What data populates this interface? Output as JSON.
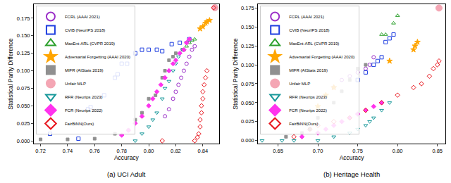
{
  "chart_data": [
    {
      "type": "scatter",
      "title": "(a) UCI Adult",
      "x_label": "Accuracy",
      "y_label": "Statistical Parity Difference",
      "xlim": [
        0.715,
        0.852
      ],
      "xticks": [
        0.72,
        0.74,
        0.76,
        0.78,
        {
          "value": 0.8,
          "label": "0.80"
        },
        0.82,
        0.84
      ],
      "ylim": [
        -0.004,
        0.195
      ],
      "yticks": [
        {
          "value": 0,
          "label": "0.000"
        },
        0.025,
        {
          "value": 0.05,
          "label": "0.050"
        },
        0.075,
        {
          "value": 0.1,
          "label": "0.100"
        },
        0.125,
        {
          "value": 0.15,
          "label": "0.150"
        },
        0.175
      ],
      "grid": false,
      "legend": "upper left",
      "series": [
        {
          "name": "FCRL (AAAI 2021)",
          "color": "#9b30c8",
          "marker": "circle-open",
          "x": [
            0.812,
            0.815,
            0.818,
            0.82,
            0.822,
            0.824,
            0.826,
            0.828,
            0.83,
            0.832,
            0.834
          ],
          "values": [
            0.035,
            0.045,
            0.06,
            0.07,
            0.08,
            0.09,
            0.1,
            0.11,
            0.12,
            0.13,
            0.135
          ]
        },
        {
          "name": "CVIB (NeurIPS 2018)",
          "color": "#1f3fe0",
          "marker": "square-open",
          "x": [
            0.727,
            0.748,
            0.755,
            0.757,
            0.767,
            0.775,
            0.777,
            0.78,
            0.784,
            0.79,
            0.795,
            0.8,
            0.806,
            0.81,
            0.817,
            0.823,
            0.83
          ],
          "values": [
            0.01,
            0.003,
            0.045,
            0.048,
            0.065,
            0.09,
            0.095,
            0.11,
            0.11,
            0.125,
            0.13,
            0.13,
            0.13,
            0.128,
            0.138,
            0.14,
            0.145
          ]
        },
        {
          "name": "MaxEnt-ARL (CVPR 2019)",
          "color": "#2ca02c",
          "marker": "triangle-up-open",
          "x": [
            0.826,
            0.828,
            0.83,
            0.832,
            0.834
          ],
          "values": [
            0.13,
            0.135,
            0.14,
            0.143,
            0.145
          ]
        },
        {
          "name": "Adversarial Forgetting (AAAI 2020)",
          "color": "#ffa500",
          "marker": "star",
          "x": [
            0.838,
            0.84,
            0.842,
            0.843,
            0.845
          ],
          "values": [
            0.16,
            0.163,
            0.168,
            0.17,
            0.172
          ]
        },
        {
          "name": "MIFR (AIStats 2019)",
          "color": "#909090",
          "marker": "square",
          "x": [
            0.72,
            0.74,
            0.76,
            0.775,
            0.785,
            0.79,
            0.795,
            0.8,
            0.805,
            0.81,
            0.812,
            0.815,
            0.818,
            0.82,
            0.825,
            0.828
          ],
          "values": [
            0.002,
            0.002,
            0.003,
            0.01,
            0.015,
            0.03,
            0.04,
            0.06,
            0.065,
            0.09,
            0.1,
            0.115,
            0.12,
            0.125,
            0.13,
            0.14
          ]
        },
        {
          "name": "Unfair MLP",
          "color": "#f4a6b4",
          "marker": "large-circle",
          "x": [
            0.849
          ],
          "values": [
            0.19
          ]
        },
        {
          "name": "RFR (Neurips 2023)",
          "color": "#17989a",
          "marker": "triangle-down-open",
          "x": [
            0.79,
            0.795,
            0.8,
            0.803,
            0.806,
            0.81,
            0.812,
            0.815,
            0.818,
            0.82,
            0.822,
            0.825,
            0.828
          ],
          "values": [
            0.0,
            0.01,
            0.02,
            0.03,
            0.04,
            0.06,
            0.075,
            0.085,
            0.1,
            0.11,
            0.12,
            0.13,
            0.14
          ]
        },
        {
          "name": "FCR (Neurips 2022)",
          "color": "#ff33ee",
          "marker": "diamond",
          "x": [
            0.78,
            0.785,
            0.79,
            0.795,
            0.8,
            0.803,
            0.806,
            0.809,
            0.812,
            0.815,
            0.818,
            0.82,
            0.823,
            0.826,
            0.828,
            0.83
          ],
          "values": [
            0.008,
            0.015,
            0.025,
            0.035,
            0.05,
            0.06,
            0.07,
            0.08,
            0.09,
            0.1,
            0.11,
            0.115,
            0.125,
            0.13,
            0.14,
            0.145
          ]
        },
        {
          "name": "FairBiNN(Ours)",
          "color": "#e8141c",
          "marker": "diamond-open",
          "x": [
            0.81,
            0.834,
            0.836,
            0.837,
            0.838,
            0.838,
            0.839,
            0.839,
            0.84,
            0.84,
            0.841,
            0.842,
            0.843,
            0.848
          ],
          "values": [
            0.0,
            0.0,
            0.005,
            0.01,
            0.02,
            0.03,
            0.04,
            0.05,
            0.06,
            0.07,
            0.08,
            0.09,
            0.1,
            0.19
          ]
        }
      ]
    },
    {
      "type": "scatter",
      "title": "(b) Heritage Health",
      "x_label": "Accuracy",
      "y_label": "Statistical Parity Difference",
      "xlim": [
        0.625,
        0.86
      ],
      "xticks": [
        0.65,
        {
          "value": 0.7,
          "label": "0.70"
        },
        0.75,
        {
          "value": 0.8,
          "label": "0.80"
        },
        0.85
      ],
      "ylim": [
        -0.004,
        0.18
      ],
      "yticks": [
        {
          "value": 0,
          "label": "0.000"
        },
        0.025,
        {
          "value": 0.05,
          "label": "0.050"
        },
        0.075,
        {
          "value": 0.1,
          "label": "0.100"
        },
        0.125,
        {
          "value": 0.15,
          "label": "0.150"
        },
        0.175
      ],
      "grid": false,
      "legend": "upper left",
      "series": [
        {
          "name": "FCRL (AAAI 2021)",
          "color": "#9b30c8",
          "marker": "circle-open",
          "x": [
            0.72,
            0.73,
            0.74,
            0.75,
            0.76,
            0.765,
            0.77
          ],
          "values": [
            0.07,
            0.08,
            0.085,
            0.09,
            0.095,
            0.1,
            0.11
          ]
        },
        {
          "name": "CVIB (NeurIPS 2018)",
          "color": "#1f3fe0",
          "marker": "square-open",
          "x": [
            0.75,
            0.76,
            0.77,
            0.775,
            0.78,
            0.785,
            0.79,
            0.795
          ],
          "values": [
            0.08,
            0.09,
            0.1,
            0.105,
            0.11,
            0.13,
            0.135,
            0.14
          ]
        },
        {
          "name": "MaxEnt-ARL (CVPR 2019)",
          "color": "#2ca02c",
          "marker": "triangle-up-open",
          "x": [
            0.78,
            0.785,
            0.795,
            0.8
          ],
          "values": [
            0.14,
            0.14,
            0.155,
            0.165
          ]
        },
        {
          "name": "Adversarial Forgetting (AAAI 2020)",
          "color": "#ffa500",
          "marker": "star",
          "x": [
            0.7,
            0.71,
            0.72,
            0.79,
            0.82,
            0.822,
            0.825
          ],
          "values": [
            0.045,
            0.06,
            0.07,
            0.105,
            0.12,
            0.125,
            0.13
          ]
        },
        {
          "name": "MIFR (AIStats 2019)",
          "color": "#909090",
          "marker": "square",
          "x": [
            0.66,
            0.68,
            0.69,
            0.7,
            0.72,
            0.73,
            0.74,
            0.75,
            0.76
          ],
          "values": [
            0.005,
            0.01,
            0.015,
            0.03,
            0.05,
            0.065,
            0.08,
            0.095,
            0.1
          ]
        },
        {
          "name": "Unfair MLP",
          "color": "#f4a6b4",
          "marker": "large-circle",
          "x": [
            0.852
          ],
          "values": [
            0.175
          ]
        },
        {
          "name": "RFR (Neurips 2023)",
          "color": "#17989a",
          "marker": "triangle-down-open",
          "x": [
            0.63,
            0.655,
            0.67,
            0.7,
            0.72,
            0.74,
            0.75,
            0.76,
            0.765,
            0.77,
            0.78,
            0.79
          ],
          "values": [
            0.0,
            0.0,
            0.0,
            0.0,
            0.005,
            0.01,
            0.015,
            0.02,
            0.025,
            0.03,
            0.04,
            0.05
          ]
        },
        {
          "name": "FCR (Neurips 2022)",
          "color": "#ff33ee",
          "marker": "diamond",
          "x": [
            0.68,
            0.7,
            0.71,
            0.72,
            0.73,
            0.74,
            0.75,
            0.76,
            0.77,
            0.78
          ],
          "values": [
            0.005,
            0.01,
            0.015,
            0.02,
            0.025,
            0.03,
            0.035,
            0.04,
            0.045,
            0.05
          ]
        },
        {
          "name": "FairBiNN(Ours)",
          "color": "#e8141c",
          "marker": "diamond-open",
          "x": [
            0.67,
            0.69,
            0.7,
            0.72,
            0.74,
            0.76,
            0.78,
            0.8,
            0.82,
            0.83,
            0.84,
            0.845,
            0.85,
            0.852
          ],
          "values": [
            0.005,
            0.015,
            0.02,
            0.025,
            0.03,
            0.04,
            0.05,
            0.06,
            0.07,
            0.075,
            0.085,
            0.095,
            0.1,
            0.105
          ]
        }
      ]
    }
  ]
}
